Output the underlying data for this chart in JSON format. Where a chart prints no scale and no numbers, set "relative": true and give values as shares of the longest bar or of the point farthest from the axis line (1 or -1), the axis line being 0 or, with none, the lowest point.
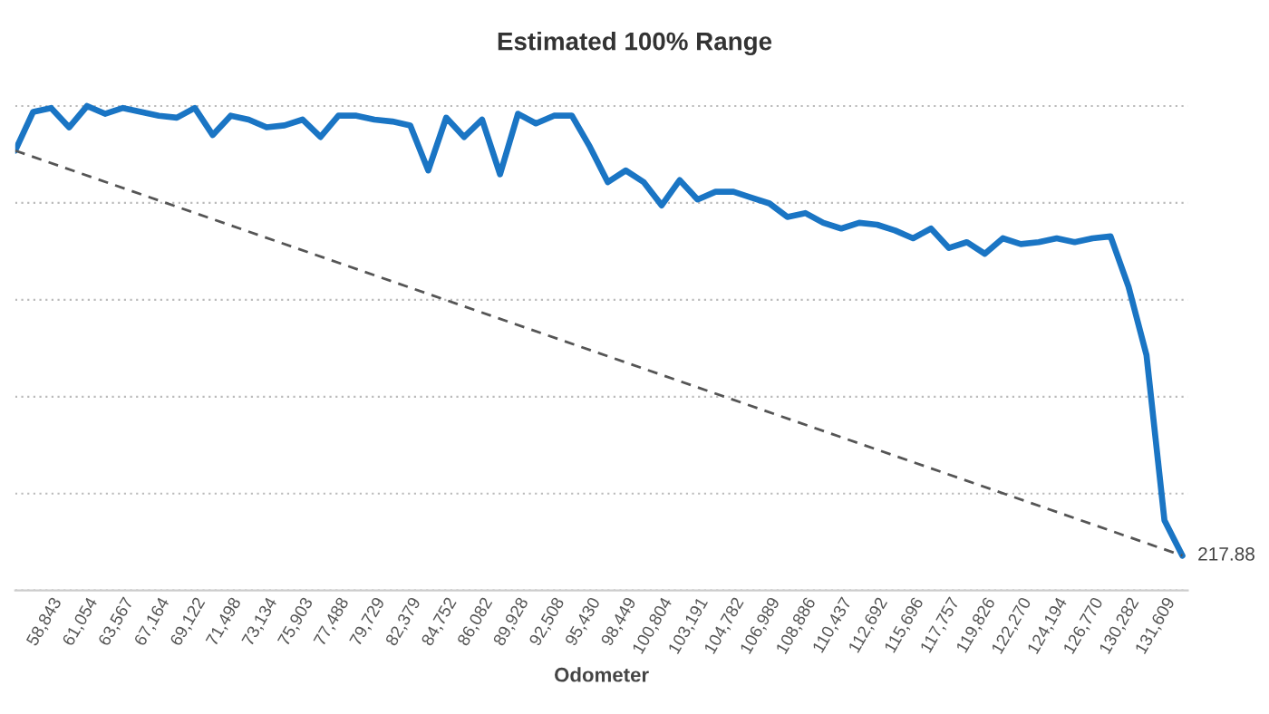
{
  "chart_data": {
    "type": "line",
    "title": "Estimated 100% Range",
    "xlabel": "Odometer",
    "relative": true,
    "grid": "y",
    "legend": false,
    "annotations": [
      "217.88"
    ],
    "categories": [
      null,
      null,
      "58,843",
      null,
      "61,054",
      null,
      "63,567",
      null,
      "67,164",
      null,
      "69,122",
      null,
      "71,498",
      null,
      "73,134",
      null,
      "75,903",
      null,
      "77,488",
      null,
      "79,729",
      null,
      "82,379",
      null,
      "84,752",
      null,
      "86,082",
      null,
      "89,928",
      null,
      "92,508",
      null,
      "95,430",
      null,
      "98,449",
      null,
      "100,804",
      null,
      "103,191",
      null,
      "104,782",
      null,
      "106,989",
      null,
      "108,886",
      null,
      "110,437",
      null,
      "112,692",
      null,
      "115,696",
      null,
      "117,757",
      null,
      "119,826",
      null,
      "122,270",
      null,
      "124,194",
      null,
      "126,770",
      null,
      "130,282",
      null,
      "131,609",
      null
    ],
    "series": [
      {
        "color": "#1a75c4",
        "line_style": "solid",
        "values": [
          0.908,
          0.988,
          0.996,
          0.956,
          1,
          0.984,
          0.996,
          0.988,
          0.98,
          0.976,
          0.996,
          0.94,
          0.98,
          0.972,
          0.956,
          0.96,
          0.972,
          0.936,
          0.98,
          0.98,
          0.972,
          0.968,
          0.96,
          0.867,
          0.976,
          0.936,
          0.972,
          0.859,
          0.984,
          0.964,
          0.98,
          0.98,
          0.916,
          0.843,
          0.867,
          0.843,
          0.795,
          0.847,
          0.807,
          0.823,
          0.823,
          0.811,
          0.799,
          0.771,
          0.779,
          0.759,
          0.747,
          0.759,
          0.755,
          0.743,
          0.727,
          0.747,
          0.707,
          0.719,
          0.695,
          0.727,
          0.715,
          0.719,
          0.727,
          0.719,
          0.727,
          0.731,
          0.627,
          0.486,
          0.145,
          0.072
        ],
        "name": null
      },
      {
        "color": "#555555",
        "line_style": "dashed",
        "values": [
          0.908,
          null,
          null,
          null,
          null,
          null,
          null,
          null,
          null,
          null,
          null,
          null,
          null,
          null,
          null,
          null,
          null,
          null,
          null,
          null,
          null,
          null,
          null,
          null,
          null,
          null,
          null,
          null,
          null,
          null,
          null,
          null,
          null,
          null,
          null,
          null,
          null,
          null,
          null,
          null,
          null,
          null,
          null,
          null,
          null,
          null,
          null,
          null,
          null,
          null,
          null,
          null,
          null,
          null,
          null,
          null,
          null,
          null,
          null,
          null,
          null,
          null,
          null,
          null,
          null,
          0.072
        ]
      }
    ]
  }
}
